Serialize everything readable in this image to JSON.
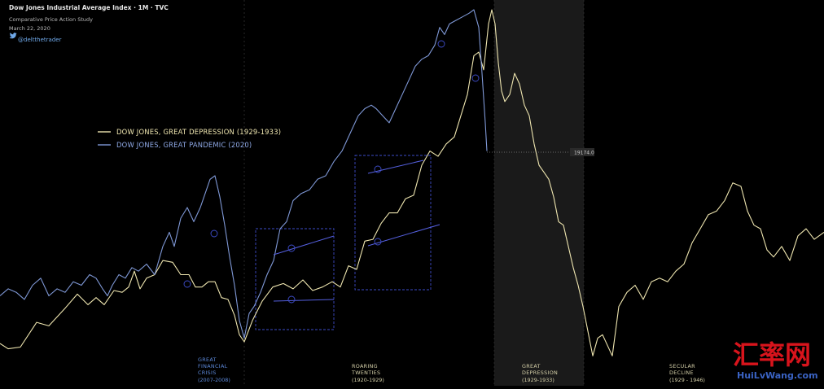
{
  "header": {
    "title": "Dow Jones Industrial Average Index · 1M · TVC",
    "subtitle": "Comparative Price Action Study",
    "date": "March 22, 2020",
    "handle": "@deltthetrader"
  },
  "chart_data": {
    "type": "line",
    "title": "Dow Jones Industrial Average Index · 1M · TVC",
    "xlabel": "",
    "ylabel": "",
    "legend_position": "left-center",
    "grid": false,
    "series": [
      {
        "name": "DOW JONES, GREAT DEPRESSION (1929-1933)",
        "color": "#efe6b0",
        "x": [
          0,
          10,
          25,
          45,
          60,
          80,
          95,
          108,
          118,
          128,
          140,
          150,
          158,
          165,
          172,
          180,
          190,
          200,
          212,
          222,
          232,
          240,
          248,
          256,
          264,
          272,
          280,
          288,
          294,
          300,
          310,
          322,
          335,
          348,
          360,
          372,
          384,
          396,
          408,
          418,
          428,
          438,
          448,
          458,
          468,
          478,
          488,
          498,
          508,
          518,
          528,
          538,
          548,
          558,
          566,
          574,
          582,
          588,
          594,
          600,
          604,
          608,
          612,
          616,
          620,
          626,
          632,
          638,
          644,
          650,
          656,
          662,
          668,
          674,
          680,
          686,
          692,
          698,
          704,
          710,
          716,
          722,
          728,
          734,
          740,
          746,
          752,
          760,
          770,
          780,
          790,
          800,
          810,
          820,
          830,
          840,
          850,
          860,
          870,
          880,
          890,
          900,
          910,
          918,
          926,
          934,
          942,
          950,
          960,
          970,
          980,
          990,
          1000,
          1012
        ],
        "values": [
          0.055,
          0.04,
          0.045,
          0.115,
          0.105,
          0.155,
          0.195,
          0.165,
          0.185,
          0.165,
          0.205,
          0.2,
          0.215,
          0.26,
          0.21,
          0.24,
          0.25,
          0.29,
          0.285,
          0.25,
          0.25,
          0.215,
          0.215,
          0.23,
          0.23,
          0.185,
          0.18,
          0.135,
          0.08,
          0.06,
          0.12,
          0.175,
          0.215,
          0.225,
          0.21,
          0.235,
          0.205,
          0.215,
          0.23,
          0.215,
          0.275,
          0.265,
          0.345,
          0.35,
          0.395,
          0.425,
          0.425,
          0.465,
          0.475,
          0.56,
          0.6,
          0.585,
          0.62,
          0.64,
          0.7,
          0.76,
          0.87,
          0.88,
          0.83,
          0.96,
          1.0,
          0.96,
          0.85,
          0.77,
          0.74,
          0.76,
          0.82,
          0.79,
          0.73,
          0.7,
          0.62,
          0.56,
          0.54,
          0.52,
          0.47,
          0.4,
          0.39,
          0.33,
          0.27,
          0.22,
          0.16,
          0.09,
          0.02,
          0.07,
          0.08,
          0.05,
          0.02,
          0.16,
          0.2,
          0.22,
          0.18,
          0.23,
          0.24,
          0.23,
          0.26,
          0.28,
          0.34,
          0.38,
          0.42,
          0.43,
          0.46,
          0.51,
          0.5,
          0.43,
          0.39,
          0.38,
          0.32,
          0.3,
          0.33,
          0.29,
          0.36,
          0.38,
          0.35,
          0.37
        ]
      },
      {
        "name": "DOW JONES, GREAT PANDEMIC (2020)",
        "color": "#7f98d6",
        "x": [
          0,
          10,
          20,
          30,
          40,
          50,
          60,
          70,
          80,
          90,
          100,
          110,
          118,
          126,
          132,
          138,
          146,
          154,
          162,
          170,
          180,
          190,
          200,
          208,
          214,
          222,
          230,
          238,
          246,
          252,
          258,
          264,
          270,
          276,
          282,
          288,
          294,
          300,
          306,
          312,
          320,
          328,
          336,
          344,
          352,
          360,
          370,
          380,
          390,
          400,
          410,
          420,
          430,
          440,
          448,
          456,
          462,
          470,
          478,
          486,
          494,
          502,
          510,
          518,
          526,
          534,
          540,
          546,
          552,
          560,
          568,
          576,
          582,
          588,
          592,
          596,
          598
        ],
        "values": [
          0.19,
          0.21,
          0.2,
          0.18,
          0.22,
          0.24,
          0.19,
          0.21,
          0.2,
          0.23,
          0.22,
          0.25,
          0.24,
          0.21,
          0.19,
          0.22,
          0.25,
          0.24,
          0.27,
          0.26,
          0.28,
          0.25,
          0.33,
          0.37,
          0.33,
          0.41,
          0.44,
          0.4,
          0.44,
          0.48,
          0.52,
          0.53,
          0.47,
          0.39,
          0.3,
          0.22,
          0.12,
          0.07,
          0.14,
          0.16,
          0.2,
          0.25,
          0.29,
          0.38,
          0.4,
          0.46,
          0.48,
          0.49,
          0.52,
          0.53,
          0.57,
          0.6,
          0.65,
          0.7,
          0.72,
          0.73,
          0.72,
          0.7,
          0.68,
          0.72,
          0.76,
          0.8,
          0.84,
          0.86,
          0.87,
          0.9,
          0.95,
          0.93,
          0.96,
          0.97,
          0.98,
          0.99,
          1.0,
          0.95,
          0.82,
          0.68,
          0.6
        ]
      }
    ],
    "price_label": "19174.0",
    "eras": [
      {
        "lines": [
          "GREAT",
          "FINANCIAL",
          "CRISIS"
        ],
        "range": "(2007-2008)",
        "color": "#5c88d8"
      },
      {
        "lines": [
          "ROARING",
          "TWENTIES"
        ],
        "range": "(1920-1929)",
        "color": "#d4cfa8"
      },
      {
        "lines": [
          "GREAT",
          "DEPRESSION"
        ],
        "range": "(1929-1933)",
        "color": "#d4cfa8"
      },
      {
        "lines": [
          "SECULAR",
          "DECLINE"
        ],
        "range": "(1929 - 1946)",
        "color": "#d4cfa8"
      }
    ]
  },
  "watermark": {
    "cn": "汇率网",
    "en": "HuiLvWang.com",
    "cn_color": "#d8141c",
    "en_color": "#3a63c4"
  }
}
